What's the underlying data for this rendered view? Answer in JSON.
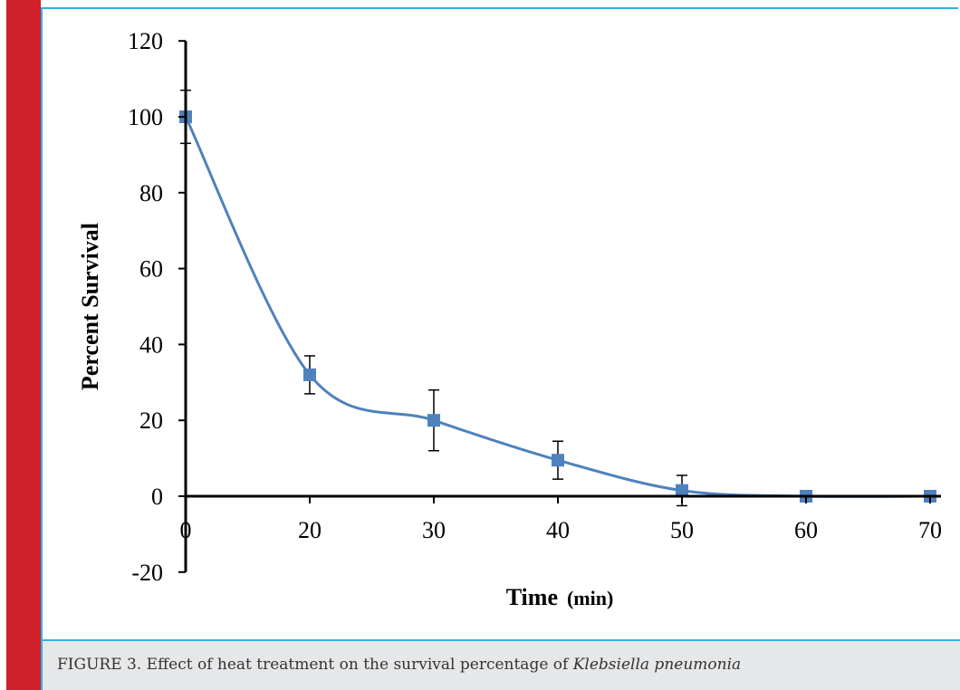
{
  "chart_data": {
    "type": "line",
    "xlabel": "Time",
    "xlabel_unit": "(min)",
    "ylabel": "Percent Survival",
    "x_ticks": [
      "0",
      "20",
      "30",
      "40",
      "50",
      "60",
      "70"
    ],
    "y_ticks": [
      "-20",
      "0",
      "20",
      "40",
      "60",
      "80",
      "100",
      "120"
    ],
    "ylim": [
      -20,
      120
    ],
    "grid": false,
    "legend": "none",
    "series": [
      {
        "color": "#4f81bd",
        "marker": "square",
        "line": "smooth",
        "x": [
          "0",
          "20",
          "30",
          "40",
          "50",
          "60",
          "70"
        ],
        "values": [
          100,
          32,
          20,
          9.5,
          1.5,
          0,
          0
        ],
        "error": [
          7,
          5,
          8,
          5,
          4,
          0,
          0
        ]
      }
    ]
  },
  "caption": {
    "prefix": "FIGURE 3. Effect of heat treatment on the survival percentage of ",
    "organism": "Klebsiella pneumonia"
  }
}
